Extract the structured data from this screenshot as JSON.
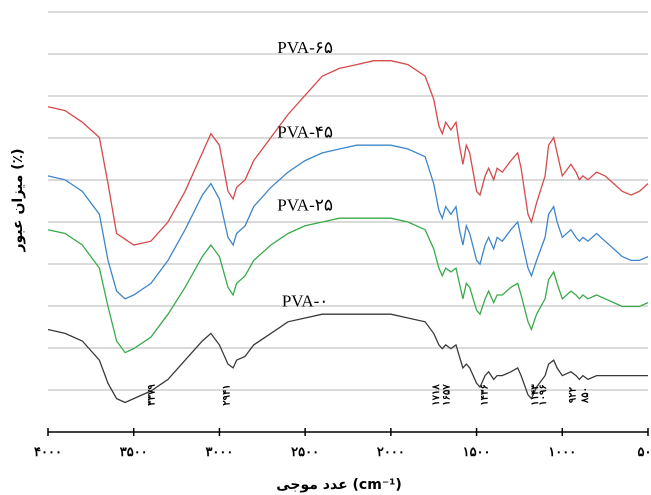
{
  "chart_data": {
    "type": "line",
    "xlabel": "عدد موجی (cm⁻¹)",
    "ylabel": "میزان عبور (٪)",
    "x_reversed": true,
    "xlim": [
      4000,
      500
    ],
    "x_ticks": [
      {
        "value": 4000,
        "label": "۴۰۰۰"
      },
      {
        "value": 3500,
        "label": "۳۵۰۰"
      },
      {
        "value": 3000,
        "label": "۳۰۰۰"
      },
      {
        "value": 2500,
        "label": "۲۵۰۰"
      },
      {
        "value": 2000,
        "label": "۲۰۰۰"
      },
      {
        "value": 1500,
        "label": "۱۵۰۰"
      },
      {
        "value": 1000,
        "label": "۱۰۰۰"
      },
      {
        "value": 500,
        "label": "۵۰۰"
      }
    ],
    "grid": true,
    "series": [
      {
        "name": "PVA-۶۵",
        "color": "#d64a4a",
        "points": [
          [
            4000,
            80
          ],
          [
            3900,
            79
          ],
          [
            3800,
            76
          ],
          [
            3700,
            72
          ],
          [
            3650,
            60
          ],
          [
            3600,
            47
          ],
          [
            3500,
            44
          ],
          [
            3400,
            45
          ],
          [
            3300,
            50
          ],
          [
            3200,
            58
          ],
          [
            3100,
            68
          ],
          [
            3050,
            73
          ],
          [
            3000,
            70
          ],
          [
            2950,
            58
          ],
          [
            2920,
            56
          ],
          [
            2900,
            59
          ],
          [
            2850,
            61
          ],
          [
            2800,
            66
          ],
          [
            2700,
            72
          ],
          [
            2600,
            78
          ],
          [
            2500,
            83
          ],
          [
            2400,
            88
          ],
          [
            2300,
            90
          ],
          [
            2200,
            91
          ],
          [
            2100,
            92
          ],
          [
            2000,
            92
          ],
          [
            1900,
            91
          ],
          [
            1800,
            88
          ],
          [
            1750,
            82
          ],
          [
            1720,
            75
          ],
          [
            1700,
            73
          ],
          [
            1680,
            76
          ],
          [
            1650,
            74
          ],
          [
            1620,
            76
          ],
          [
            1600,
            70
          ],
          [
            1580,
            65
          ],
          [
            1560,
            70
          ],
          [
            1540,
            68
          ],
          [
            1500,
            58
          ],
          [
            1480,
            57
          ],
          [
            1450,
            62
          ],
          [
            1430,
            64
          ],
          [
            1400,
            61
          ],
          [
            1380,
            64
          ],
          [
            1350,
            63
          ],
          [
            1300,
            66
          ],
          [
            1260,
            68
          ],
          [
            1240,
            64
          ],
          [
            1200,
            52
          ],
          [
            1180,
            50
          ],
          [
            1150,
            55
          ],
          [
            1100,
            62
          ],
          [
            1080,
            70
          ],
          [
            1050,
            72
          ],
          [
            1030,
            68
          ],
          [
            1000,
            62
          ],
          [
            950,
            65
          ],
          [
            920,
            63
          ],
          [
            900,
            61
          ],
          [
            880,
            62
          ],
          [
            850,
            61
          ],
          [
            800,
            63
          ],
          [
            750,
            62
          ],
          [
            700,
            60
          ],
          [
            650,
            58
          ],
          [
            600,
            57
          ],
          [
            550,
            58
          ],
          [
            500,
            60
          ]
        ]
      },
      {
        "name": "PVA-۴۵",
        "color": "#3f86c8",
        "points": [
          [
            4000,
            62
          ],
          [
            3900,
            61
          ],
          [
            3800,
            58
          ],
          [
            3700,
            52
          ],
          [
            3650,
            40
          ],
          [
            3600,
            32
          ],
          [
            3550,
            30
          ],
          [
            3500,
            31
          ],
          [
            3400,
            34
          ],
          [
            3300,
            40
          ],
          [
            3200,
            48
          ],
          [
            3100,
            57
          ],
          [
            3050,
            60
          ],
          [
            3000,
            56
          ],
          [
            2950,
            46
          ],
          [
            2920,
            44
          ],
          [
            2900,
            47
          ],
          [
            2850,
            49
          ],
          [
            2800,
            54
          ],
          [
            2700,
            59
          ],
          [
            2600,
            63
          ],
          [
            2500,
            66
          ],
          [
            2400,
            68
          ],
          [
            2300,
            69
          ],
          [
            2200,
            70
          ],
          [
            2100,
            70
          ],
          [
            2000,
            70
          ],
          [
            1900,
            69
          ],
          [
            1800,
            67
          ],
          [
            1750,
            60
          ],
          [
            1720,
            53
          ],
          [
            1700,
            51
          ],
          [
            1680,
            54
          ],
          [
            1650,
            52
          ],
          [
            1620,
            54
          ],
          [
            1600,
            48
          ],
          [
            1580,
            44
          ],
          [
            1560,
            49
          ],
          [
            1540,
            47
          ],
          [
            1500,
            40
          ],
          [
            1480,
            39
          ],
          [
            1450,
            44
          ],
          [
            1430,
            46
          ],
          [
            1400,
            43
          ],
          [
            1380,
            46
          ],
          [
            1350,
            45
          ],
          [
            1300,
            48
          ],
          [
            1260,
            50
          ],
          [
            1240,
            46
          ],
          [
            1200,
            38
          ],
          [
            1180,
            36
          ],
          [
            1150,
            40
          ],
          [
            1100,
            46
          ],
          [
            1080,
            52
          ],
          [
            1050,
            54
          ],
          [
            1030,
            50
          ],
          [
            1000,
            46
          ],
          [
            950,
            48
          ],
          [
            920,
            46
          ],
          [
            900,
            45
          ],
          [
            880,
            46
          ],
          [
            850,
            45
          ],
          [
            800,
            47
          ],
          [
            750,
            45
          ],
          [
            700,
            43
          ],
          [
            650,
            41
          ],
          [
            600,
            40
          ],
          [
            550,
            40
          ],
          [
            500,
            41
          ]
        ]
      },
      {
        "name": "PVA-۲۵",
        "color": "#3aaa4a",
        "points": [
          [
            4000,
            48
          ],
          [
            3900,
            47
          ],
          [
            3800,
            44
          ],
          [
            3700,
            38
          ],
          [
            3650,
            28
          ],
          [
            3600,
            19
          ],
          [
            3550,
            16
          ],
          [
            3500,
            17
          ],
          [
            3400,
            20
          ],
          [
            3300,
            26
          ],
          [
            3200,
            33
          ],
          [
            3100,
            41
          ],
          [
            3050,
            44
          ],
          [
            3000,
            41
          ],
          [
            2950,
            33
          ],
          [
            2920,
            31
          ],
          [
            2900,
            34
          ],
          [
            2850,
            36
          ],
          [
            2800,
            40
          ],
          [
            2700,
            44
          ],
          [
            2600,
            47
          ],
          [
            2500,
            49
          ],
          [
            2400,
            50
          ],
          [
            2300,
            51
          ],
          [
            2200,
            51
          ],
          [
            2100,
            51
          ],
          [
            2000,
            51
          ],
          [
            1900,
            50
          ],
          [
            1800,
            48
          ],
          [
            1750,
            43
          ],
          [
            1720,
            38
          ],
          [
            1700,
            36
          ],
          [
            1680,
            38
          ],
          [
            1650,
            37
          ],
          [
            1620,
            38
          ],
          [
            1600,
            34
          ],
          [
            1580,
            30
          ],
          [
            1560,
            34
          ],
          [
            1540,
            33
          ],
          [
            1500,
            27
          ],
          [
            1480,
            26
          ],
          [
            1450,
            30
          ],
          [
            1430,
            32
          ],
          [
            1400,
            29
          ],
          [
            1380,
            31
          ],
          [
            1350,
            31
          ],
          [
            1300,
            33
          ],
          [
            1260,
            34
          ],
          [
            1240,
            31
          ],
          [
            1200,
            24
          ],
          [
            1180,
            22
          ],
          [
            1150,
            26
          ],
          [
            1100,
            30
          ],
          [
            1080,
            35
          ],
          [
            1050,
            37
          ],
          [
            1030,
            34
          ],
          [
            1000,
            30
          ],
          [
            950,
            32
          ],
          [
            920,
            31
          ],
          [
            900,
            30
          ],
          [
            880,
            31
          ],
          [
            850,
            30
          ],
          [
            800,
            31
          ],
          [
            750,
            30
          ],
          [
            700,
            29
          ],
          [
            650,
            28
          ],
          [
            600,
            28
          ],
          [
            550,
            28
          ],
          [
            500,
            29
          ]
        ]
      },
      {
        "name": "PVA-۰",
        "color": "#3a3a3a",
        "points": [
          [
            4000,
            22
          ],
          [
            3900,
            21
          ],
          [
            3800,
            19
          ],
          [
            3700,
            14
          ],
          [
            3650,
            8
          ],
          [
            3600,
            4
          ],
          [
            3550,
            3
          ],
          [
            3500,
            4
          ],
          [
            3400,
            6
          ],
          [
            3300,
            9
          ],
          [
            3200,
            14
          ],
          [
            3100,
            19
          ],
          [
            3050,
            21
          ],
          [
            3000,
            18
          ],
          [
            2950,
            13
          ],
          [
            2920,
            12
          ],
          [
            2900,
            14
          ],
          [
            2850,
            15
          ],
          [
            2800,
            18
          ],
          [
            2700,
            21
          ],
          [
            2600,
            24
          ],
          [
            2500,
            25
          ],
          [
            2400,
            26
          ],
          [
            2300,
            26
          ],
          [
            2200,
            26
          ],
          [
            2100,
            26
          ],
          [
            2000,
            26
          ],
          [
            1900,
            25
          ],
          [
            1800,
            24
          ],
          [
            1750,
            21
          ],
          [
            1720,
            18
          ],
          [
            1700,
            17
          ],
          [
            1680,
            18
          ],
          [
            1650,
            17
          ],
          [
            1620,
            18
          ],
          [
            1600,
            15
          ],
          [
            1580,
            12
          ],
          [
            1560,
            13
          ],
          [
            1540,
            12
          ],
          [
            1500,
            8
          ],
          [
            1480,
            7
          ],
          [
            1450,
            10
          ],
          [
            1430,
            11
          ],
          [
            1400,
            9
          ],
          [
            1380,
            10
          ],
          [
            1350,
            10
          ],
          [
            1300,
            11
          ],
          [
            1260,
            12
          ],
          [
            1240,
            10
          ],
          [
            1200,
            5
          ],
          [
            1180,
            4
          ],
          [
            1150,
            7
          ],
          [
            1100,
            10
          ],
          [
            1080,
            13
          ],
          [
            1050,
            14
          ],
          [
            1030,
            12
          ],
          [
            1000,
            10
          ],
          [
            950,
            11
          ],
          [
            920,
            10
          ],
          [
            900,
            9
          ],
          [
            880,
            10
          ],
          [
            850,
            9
          ],
          [
            800,
            10
          ],
          [
            750,
            10
          ],
          [
            700,
            10
          ],
          [
            650,
            10
          ],
          [
            600,
            10
          ],
          [
            550,
            10
          ],
          [
            500,
            10
          ]
        ]
      }
    ],
    "series_labels": [
      {
        "text": "PVA-۶۵",
        "x": 2500,
        "y": 94
      },
      {
        "text": "PVA-۴۵",
        "x": 2500,
        "y": 72
      },
      {
        "text": "PVA-۲۵",
        "x": 2500,
        "y": 53
      },
      {
        "text": "PVA-۰",
        "x": 2500,
        "y": 28
      }
    ],
    "annotations": [
      {
        "text": "۳۳۷۹",
        "x": 3379
      },
      {
        "text": "۲۹۴۱",
        "x": 2941
      },
      {
        "text": "۱۷۱۸",
        "x": 1718
      },
      {
        "text": "۱۶۵۷",
        "x": 1657
      },
      {
        "text": "۱۴۳۶",
        "x": 1436
      },
      {
        "text": "۱۱۴۳",
        "x": 1143
      },
      {
        "text": "۱۰۹۶",
        "x": 1096
      },
      {
        "text": "۹۲۲",
        "x": 922
      },
      {
        "text": "۸۵۰",
        "x": 850
      }
    ]
  }
}
